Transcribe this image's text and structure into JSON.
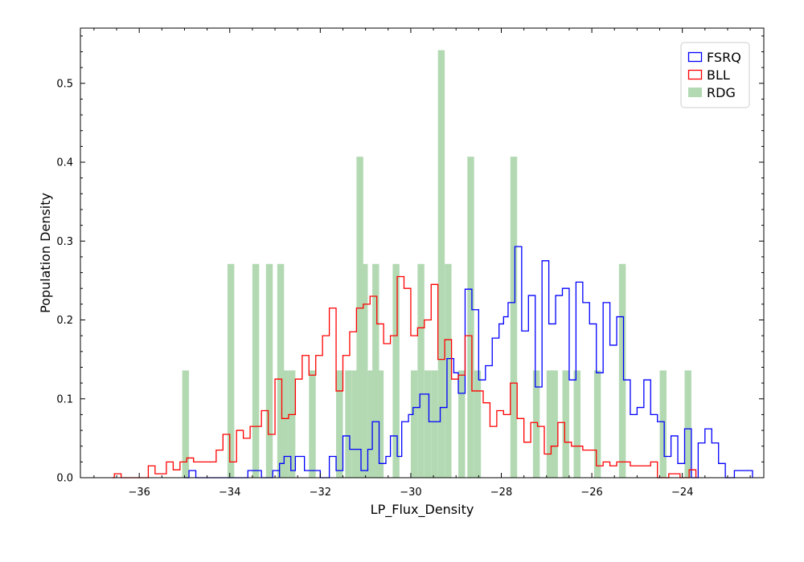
{
  "chart_data": {
    "type": "histogram",
    "xlabel": "LP_Flux_Density",
    "ylabel": "Population Density",
    "xlim": [
      -37.3,
      -22.2
    ],
    "ylim": [
      0,
      0.57
    ],
    "xticks": [
      -36,
      -34,
      -32,
      -30,
      -28,
      -26,
      -24
    ],
    "yticks": [
      0.0,
      0.1,
      0.2,
      0.3,
      0.4,
      0.5
    ],
    "xtick_labels": [
      "−36",
      "−34",
      "−32",
      "−30",
      "−28",
      "−26",
      "−24"
    ],
    "ytick_labels": [
      "0.0",
      "0.1",
      "0.2",
      "0.3",
      "0.4",
      "0.5"
    ],
    "legend_position": "upper right",
    "series": [
      {
        "name": "FSRQ",
        "style": "step",
        "color": "#0000ff",
        "points": [
          [
            -35.0,
            0.0
          ],
          [
            -34.9,
            0.009
          ],
          [
            -34.75,
            0.0
          ],
          [
            -33.6,
            0.009
          ],
          [
            -33.3,
            0.0
          ],
          [
            -33.05,
            0.009
          ],
          [
            -32.9,
            0.0
          ],
          [
            -32.9,
            0.018
          ],
          [
            -32.8,
            0.027
          ],
          [
            -32.65,
            0.009
          ],
          [
            -32.55,
            0.027
          ],
          [
            -32.35,
            0.009
          ],
          [
            -32.0,
            0.0
          ],
          [
            -31.8,
            0.027
          ],
          [
            -31.65,
            0.009
          ],
          [
            -31.5,
            0.053
          ],
          [
            -31.35,
            0.036
          ],
          [
            -31.1,
            0.009
          ],
          [
            -30.95,
            0.036
          ],
          [
            -30.85,
            0.071
          ],
          [
            -30.7,
            0.018
          ],
          [
            -30.55,
            0.027
          ],
          [
            -30.45,
            0.053
          ],
          [
            -30.3,
            0.027
          ],
          [
            -30.2,
            0.071
          ],
          [
            -30.05,
            0.08
          ],
          [
            -29.95,
            0.089
          ],
          [
            -29.8,
            0.106
          ],
          [
            -29.6,
            0.071
          ],
          [
            -29.35,
            0.089
          ],
          [
            -29.2,
            0.151
          ],
          [
            -29.05,
            0.133
          ],
          [
            -28.95,
            0.107
          ],
          [
            -28.8,
            0.239
          ],
          [
            -28.65,
            0.213
          ],
          [
            -28.5,
            0.124
          ],
          [
            -28.35,
            0.142
          ],
          [
            -28.2,
            0.177
          ],
          [
            -28.05,
            0.195
          ],
          [
            -27.95,
            0.204
          ],
          [
            -27.85,
            0.222
          ],
          [
            -27.7,
            0.293
          ],
          [
            -27.55,
            0.186
          ],
          [
            -27.4,
            0.231
          ],
          [
            -27.25,
            0.115
          ],
          [
            -27.1,
            0.275
          ],
          [
            -26.95,
            0.195
          ],
          [
            -26.8,
            0.231
          ],
          [
            -26.65,
            0.24
          ],
          [
            -26.5,
            0.124
          ],
          [
            -26.35,
            0.248
          ],
          [
            -26.2,
            0.222
          ],
          [
            -26.05,
            0.195
          ],
          [
            -25.9,
            0.133
          ],
          [
            -25.75,
            0.222
          ],
          [
            -25.6,
            0.168
          ],
          [
            -25.45,
            0.204
          ],
          [
            -25.3,
            0.124
          ],
          [
            -25.15,
            0.08
          ],
          [
            -25.0,
            0.089
          ],
          [
            -24.85,
            0.124
          ],
          [
            -24.7,
            0.08
          ],
          [
            -24.55,
            0.071
          ],
          [
            -24.4,
            0.027
          ],
          [
            -24.25,
            0.053
          ],
          [
            -24.1,
            0.018
          ],
          [
            -23.95,
            0.062
          ],
          [
            -23.8,
            0.0
          ],
          [
            -23.65,
            0.044
          ],
          [
            -23.5,
            0.062
          ],
          [
            -23.35,
            0.044
          ],
          [
            -23.2,
            0.018
          ],
          [
            -23.05,
            0.0
          ],
          [
            -22.85,
            0.009
          ],
          [
            -22.45,
            0.0
          ]
        ]
      },
      {
        "name": "BLL",
        "style": "step",
        "color": "#ff0000",
        "points": [
          [
            -36.6,
            0.0
          ],
          [
            -36.55,
            0.005
          ],
          [
            -36.4,
            0.0
          ],
          [
            -35.8,
            0.015
          ],
          [
            -35.65,
            0.005
          ],
          [
            -35.4,
            0.02
          ],
          [
            -35.25,
            0.01
          ],
          [
            -35.1,
            0.02
          ],
          [
            -34.95,
            0.025
          ],
          [
            -34.8,
            0.02
          ],
          [
            -34.3,
            0.035
          ],
          [
            -34.15,
            0.055
          ],
          [
            -34.0,
            0.02
          ],
          [
            -33.85,
            0.06
          ],
          [
            -33.7,
            0.05
          ],
          [
            -33.55,
            0.065
          ],
          [
            -33.3,
            0.085
          ],
          [
            -33.15,
            0.055
          ],
          [
            -33.0,
            0.125
          ],
          [
            -32.85,
            0.075
          ],
          [
            -32.7,
            0.08
          ],
          [
            -32.55,
            0.125
          ],
          [
            -32.4,
            0.155
          ],
          [
            -32.25,
            0.13
          ],
          [
            -32.1,
            0.155
          ],
          [
            -31.95,
            0.18
          ],
          [
            -31.8,
            0.215
          ],
          [
            -31.65,
            0.11
          ],
          [
            -31.5,
            0.155
          ],
          [
            -31.35,
            0.185
          ],
          [
            -31.2,
            0.215
          ],
          [
            -31.05,
            0.22
          ],
          [
            -30.9,
            0.23
          ],
          [
            -30.75,
            0.195
          ],
          [
            -30.6,
            0.17
          ],
          [
            -30.45,
            0.18
          ],
          [
            -30.3,
            0.255
          ],
          [
            -30.15,
            0.24
          ],
          [
            -30.0,
            0.18
          ],
          [
            -29.85,
            0.19
          ],
          [
            -29.7,
            0.2
          ],
          [
            -29.55,
            0.245
          ],
          [
            -29.4,
            0.15
          ],
          [
            -29.25,
            0.175
          ],
          [
            -29.1,
            0.125
          ],
          [
            -28.95,
            0.13
          ],
          [
            -28.8,
            0.18
          ],
          [
            -28.65,
            0.11
          ],
          [
            -28.4,
            0.095
          ],
          [
            -28.25,
            0.065
          ],
          [
            -28.1,
            0.085
          ],
          [
            -27.95,
            0.08
          ],
          [
            -27.8,
            0.12
          ],
          [
            -27.65,
            0.075
          ],
          [
            -27.5,
            0.045
          ],
          [
            -27.35,
            0.07
          ],
          [
            -27.2,
            0.065
          ],
          [
            -27.05,
            0.03
          ],
          [
            -26.9,
            0.04
          ],
          [
            -26.75,
            0.07
          ],
          [
            -26.6,
            0.045
          ],
          [
            -26.45,
            0.04
          ],
          [
            -26.2,
            0.035
          ],
          [
            -25.9,
            0.015
          ],
          [
            -25.75,
            0.02
          ],
          [
            -25.6,
            0.015
          ],
          [
            -25.45,
            0.02
          ],
          [
            -25.15,
            0.015
          ],
          [
            -24.7,
            0.02
          ],
          [
            -24.55,
            0.0
          ],
          [
            -24.3,
            0.005
          ],
          [
            -24.05,
            0.0
          ],
          [
            -23.85,
            0.01
          ],
          [
            -23.7,
            0.0
          ]
        ]
      },
      {
        "name": "RDG",
        "style": "bar",
        "color": "#b3d9b3",
        "bin_width": 0.15,
        "bars": [
          [
            -35.05,
            0.136
          ],
          [
            -34.05,
            0.271
          ],
          [
            -33.5,
            0.271
          ],
          [
            -33.2,
            0.271
          ],
          [
            -32.95,
            0.271
          ],
          [
            -32.85,
            0.136
          ],
          [
            -32.7,
            0.136
          ],
          [
            -32.25,
            0.136
          ],
          [
            -31.65,
            0.136
          ],
          [
            -31.45,
            0.136
          ],
          [
            -31.3,
            0.136
          ],
          [
            -31.2,
            0.407
          ],
          [
            -31.1,
            0.271
          ],
          [
            -30.95,
            0.136
          ],
          [
            -30.85,
            0.271
          ],
          [
            -30.75,
            0.136
          ],
          [
            -30.4,
            0.271
          ],
          [
            -30.0,
            0.136
          ],
          [
            -29.85,
            0.271
          ],
          [
            -29.7,
            0.136
          ],
          [
            -29.55,
            0.136
          ],
          [
            -29.4,
            0.542
          ],
          [
            -29.25,
            0.271
          ],
          [
            -28.95,
            0.136
          ],
          [
            -28.75,
            0.407
          ],
          [
            -28.6,
            0.136
          ],
          [
            -27.8,
            0.407
          ],
          [
            -27.3,
            0.136
          ],
          [
            -27.0,
            0.136
          ],
          [
            -26.9,
            0.136
          ],
          [
            -26.65,
            0.136
          ],
          [
            -26.4,
            0.136
          ],
          [
            -25.95,
            0.136
          ],
          [
            -25.4,
            0.271
          ],
          [
            -24.5,
            0.136
          ],
          [
            -23.95,
            0.136
          ]
        ]
      }
    ]
  }
}
